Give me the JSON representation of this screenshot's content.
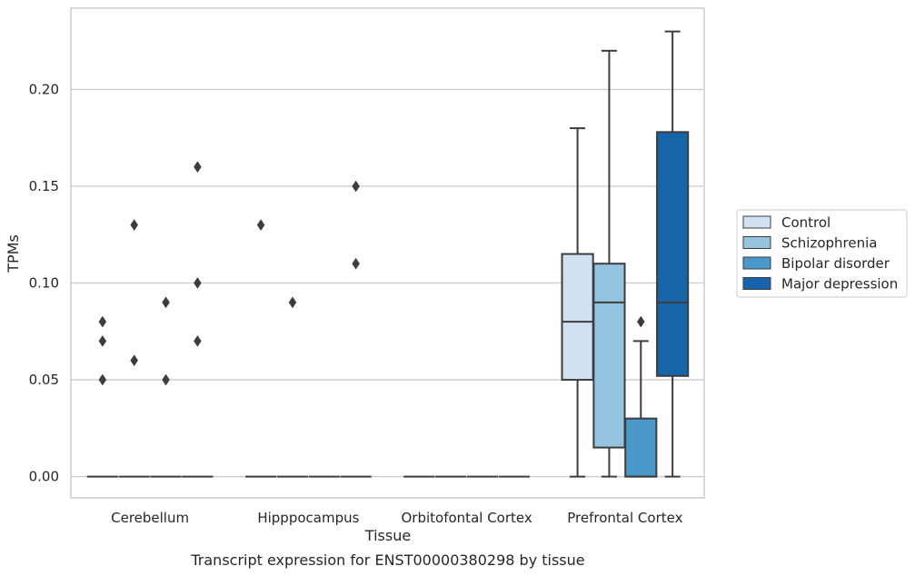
{
  "chart_data": {
    "type": "box",
    "xlabel": "Tissue",
    "ylabel": "TPMs",
    "caption": "Transcript expression for ENST00000380298 by tissue",
    "ylim": [
      -0.011,
      0.242
    ],
    "yticks": [
      0.0,
      0.05,
      0.1,
      0.15,
      0.2
    ],
    "ytick_labels": [
      "0.00",
      "0.05",
      "0.10",
      "0.15",
      "0.20"
    ],
    "grid": "horizontal",
    "legend_position": "right",
    "categories": [
      "Cerebellum",
      "Hipppocampus",
      "Orbitofontal Cortex",
      "Prefrontal Cortex"
    ],
    "series": [
      {
        "name": "Control",
        "color": "#d0e1f2",
        "boxes": [
          {
            "category": "Cerebellum",
            "q1": 0,
            "median": 0,
            "q3": 0,
            "whisker_low": 0,
            "whisker_high": 0,
            "outliers": [
              0.05,
              0.07,
              0.08
            ]
          },
          {
            "category": "Hipppocampus",
            "q1": 0,
            "median": 0,
            "q3": 0,
            "whisker_low": 0,
            "whisker_high": 0,
            "outliers": [
              0.13
            ]
          },
          {
            "category": "Orbitofontal Cortex",
            "q1": 0,
            "median": 0,
            "q3": 0,
            "whisker_low": 0,
            "whisker_high": 0,
            "outliers": []
          },
          {
            "category": "Prefrontal Cortex",
            "q1": 0.05,
            "median": 0.08,
            "q3": 0.115,
            "whisker_low": 0,
            "whisker_high": 0.18,
            "outliers": []
          }
        ]
      },
      {
        "name": "Schizophrenia",
        "color": "#94c4df",
        "boxes": [
          {
            "category": "Cerebellum",
            "q1": 0,
            "median": 0,
            "q3": 0,
            "whisker_low": 0,
            "whisker_high": 0,
            "outliers": [
              0.06,
              0.13
            ]
          },
          {
            "category": "Hipppocampus",
            "q1": 0,
            "median": 0,
            "q3": 0,
            "whisker_low": 0,
            "whisker_high": 0,
            "outliers": [
              0.09
            ]
          },
          {
            "category": "Orbitofontal Cortex",
            "q1": 0,
            "median": 0,
            "q3": 0,
            "whisker_low": 0,
            "whisker_high": 0,
            "outliers": []
          },
          {
            "category": "Prefrontal Cortex",
            "q1": 0.015,
            "median": 0.09,
            "q3": 0.11,
            "whisker_low": 0,
            "whisker_high": 0.22,
            "outliers": []
          }
        ]
      },
      {
        "name": "Bipolar disorder",
        "color": "#4a98c9",
        "boxes": [
          {
            "category": "Cerebellum",
            "q1": 0,
            "median": 0,
            "q3": 0,
            "whisker_low": 0,
            "whisker_high": 0,
            "outliers": [
              0.05,
              0.09
            ]
          },
          {
            "category": "Hipppocampus",
            "q1": 0,
            "median": 0,
            "q3": 0,
            "whisker_low": 0,
            "whisker_high": 0,
            "outliers": []
          },
          {
            "category": "Orbitofontal Cortex",
            "q1": 0,
            "median": 0,
            "q3": 0,
            "whisker_low": 0,
            "whisker_high": 0,
            "outliers": []
          },
          {
            "category": "Prefrontal Cortex",
            "q1": 0,
            "median": 0,
            "q3": 0.03,
            "whisker_low": 0,
            "whisker_high": 0.07,
            "outliers": [
              0.08
            ]
          }
        ]
      },
      {
        "name": "Major depression",
        "color": "#1764ab",
        "boxes": [
          {
            "category": "Cerebellum",
            "q1": 0,
            "median": 0,
            "q3": 0,
            "whisker_low": 0,
            "whisker_high": 0,
            "outliers": [
              0.07,
              0.1,
              0.16
            ]
          },
          {
            "category": "Hipppocampus",
            "q1": 0,
            "median": 0,
            "q3": 0,
            "whisker_low": 0,
            "whisker_high": 0,
            "outliers": [
              0.11,
              0.15
            ]
          },
          {
            "category": "Orbitofontal Cortex",
            "q1": 0,
            "median": 0,
            "q3": 0,
            "whisker_low": 0,
            "whisker_high": 0,
            "outliers": []
          },
          {
            "category": "Prefrontal Cortex",
            "q1": 0.052,
            "median": 0.09,
            "q3": 0.178,
            "whisker_low": 0,
            "whisker_high": 0.23,
            "outliers": []
          }
        ]
      }
    ]
  }
}
